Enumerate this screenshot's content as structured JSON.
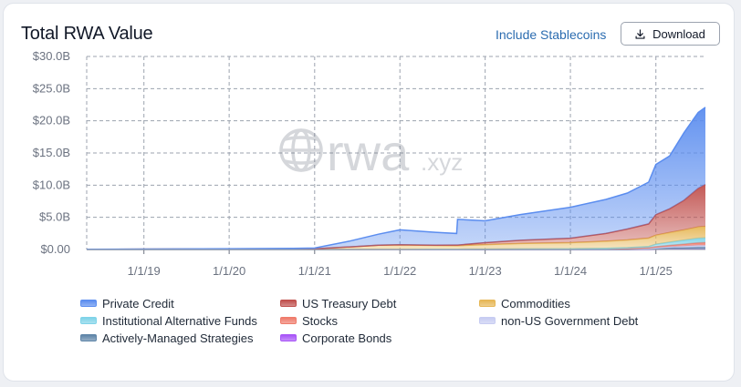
{
  "header": {
    "title": "Total RWA Value",
    "stablecoins_label": "Include Stablecoins",
    "download_label": "Download",
    "download_icon": "download-icon"
  },
  "watermark": {
    "text": "rwa",
    "suffix": ".xyz",
    "icon": "globe-icon"
  },
  "chart_data": {
    "type": "area",
    "stacked": true,
    "x_unit": "date",
    "yticks": [
      "$0.00",
      "$5.0B",
      "$10.0B",
      "$15.0B",
      "$20.0B",
      "$25.0B",
      "$30.0B"
    ],
    "ylim": [
      0,
      30
    ],
    "xticks": [
      "1/1/19",
      "1/1/20",
      "1/1/21",
      "1/1/22",
      "1/1/23",
      "1/1/24",
      "1/1/25"
    ],
    "xlim": [
      "2018-05-01",
      "2025-08-01"
    ],
    "grid": true,
    "legend_position": "bottom",
    "x": [
      "2018-05-01",
      "2019-01-01",
      "2020-01-01",
      "2020-10-01",
      "2021-01-01",
      "2021-06-01",
      "2021-10-01",
      "2022-01-01",
      "2022-06-01",
      "2022-09-01",
      "2022-09-05",
      "2023-01-01",
      "2023-06-01",
      "2024-01-01",
      "2024-06-01",
      "2024-09-01",
      "2024-12-01",
      "2025-01-01",
      "2025-03-01",
      "2025-05-01",
      "2025-07-01",
      "2025-08-01"
    ],
    "series": [
      {
        "name": "Private Credit",
        "color": "#5b8def",
        "values": [
          0.01,
          0.02,
          0.05,
          0.08,
          0.1,
          0.9,
          1.7,
          2.3,
          2.0,
          1.8,
          4.0,
          3.4,
          4.0,
          4.8,
          5.3,
          5.6,
          6.5,
          7.8,
          8.2,
          10.5,
          11.8,
          12.0
        ]
      },
      {
        "name": "US Treasury Debt",
        "color": "#c0504d",
        "values": [
          0,
          0,
          0,
          0,
          0,
          0.01,
          0.02,
          0.03,
          0.05,
          0.1,
          0.1,
          0.3,
          0.5,
          0.7,
          1.2,
          1.7,
          2.2,
          3.2,
          3.7,
          4.6,
          6.0,
          6.5
        ]
      },
      {
        "name": "Commodities",
        "color": "#e6b756",
        "values": [
          0.03,
          0.05,
          0.08,
          0.1,
          0.12,
          0.4,
          0.65,
          0.7,
          0.6,
          0.55,
          0.55,
          0.7,
          0.85,
          0.95,
          1.1,
          1.2,
          1.3,
          1.4,
          1.5,
          1.6,
          1.75,
          1.8
        ]
      },
      {
        "name": "Institutional Alternative Funds",
        "color": "#7fd3e8",
        "values": [
          0,
          0,
          0,
          0,
          0,
          0,
          0,
          0,
          0,
          0,
          0,
          0,
          0,
          0,
          0.05,
          0.1,
          0.2,
          0.4,
          0.5,
          0.6,
          0.7,
          0.7
        ]
      },
      {
        "name": "Stocks",
        "color": "#ef7b6b",
        "values": [
          0,
          0,
          0,
          0,
          0,
          0,
          0.01,
          0.02,
          0.02,
          0.02,
          0.02,
          0.03,
          0.04,
          0.05,
          0.06,
          0.08,
          0.1,
          0.15,
          0.2,
          0.3,
          0.4,
          0.45
        ]
      },
      {
        "name": "non-US Government Debt",
        "color": "#c7ccf2",
        "values": [
          0,
          0,
          0,
          0,
          0,
          0,
          0,
          0,
          0.01,
          0.02,
          0.02,
          0.03,
          0.04,
          0.06,
          0.08,
          0.1,
          0.12,
          0.15,
          0.2,
          0.25,
          0.3,
          0.3
        ]
      },
      {
        "name": "Actively-Managed Strategies",
        "color": "#5f85a8",
        "values": [
          0,
          0,
          0,
          0,
          0,
          0,
          0,
          0,
          0,
          0,
          0,
          0,
          0,
          0,
          0,
          0,
          0.05,
          0.1,
          0.2,
          0.25,
          0.3,
          0.3
        ]
      },
      {
        "name": "Corporate Bonds",
        "color": "#a855f7",
        "values": [
          0,
          0,
          0,
          0,
          0,
          0,
          0,
          0,
          0,
          0,
          0,
          0,
          0,
          0,
          0,
          0,
          0,
          0.02,
          0.03,
          0.04,
          0.05,
          0.05
        ]
      }
    ]
  }
}
